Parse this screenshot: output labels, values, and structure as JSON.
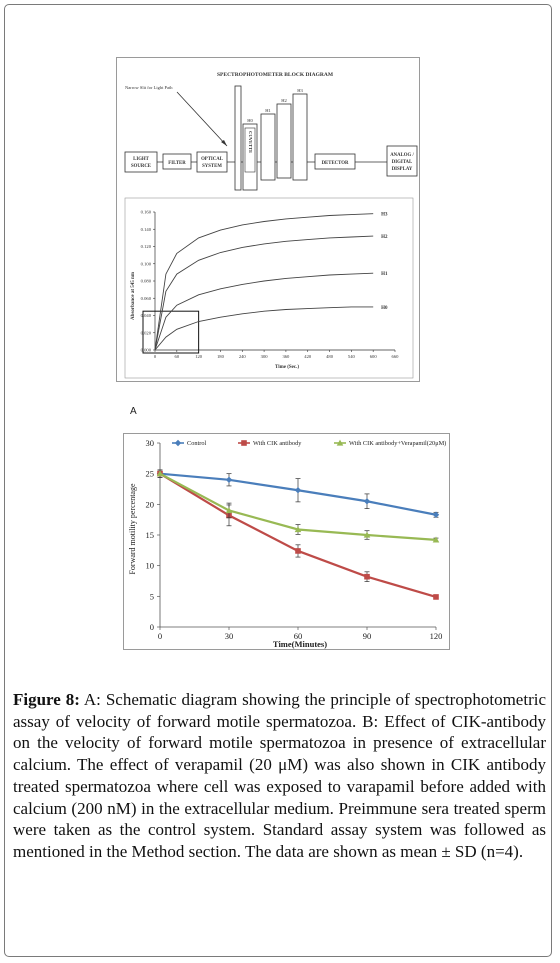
{
  "figure": {
    "label": "Figure 8:",
    "caption": "A: Schematic diagram showing the principle of spectrophotometric assay of velocity of forward motile spermatozoa. B: Effect of CIK-antibody on the velocity of forward motile spermatozoa in presence of extracellular calcium. The effect of verapamil (20 μM) was also shown in CIK antibody treated spermatozoa where cell was exposed to varapamil before added with calcium (200 nM) in the extracellular medium. Preimmune sera treated sperm were taken as the control system. Standard assay system was followed as mentioned in the Method section. The data are shown as mean ± SD (n=4)."
  },
  "panel_a": {
    "label": "A",
    "diagram": {
      "title": "SPECTROPHOTOMETER BLOCK DIAGRAM",
      "slit_label": "Narrow Slit for Light Path",
      "blocks": {
        "light_source": [
          "LIGHT",
          "SOURCE"
        ],
        "filter": "FILTER",
        "optical": [
          "OPTICAL",
          "SYSTEM"
        ],
        "cuvette": "CUVETTE",
        "detector": "DETECTOR",
        "display": [
          "ANALOG /",
          "DIGITAL",
          "DISPLAY"
        ]
      },
      "levels": [
        "H0",
        "H1",
        "H2",
        "H3"
      ]
    },
    "colors": {
      "ink": "#333333",
      "curve": "#444444"
    }
  },
  "chart_data": [
    {
      "type": "line",
      "xlabel": "Time (Sec.)",
      "ylabel": "Absorbance at 545 nm",
      "xticks": [
        0,
        60,
        120,
        180,
        240,
        300,
        360,
        420,
        480,
        540,
        600,
        660
      ],
      "yticks": [
        "0.000",
        "0.020",
        "0.040",
        "0.060",
        "0.080",
        "0.100",
        "0.120",
        "0.140",
        "0.160"
      ],
      "xlim": [
        0,
        660
      ],
      "ylim": [
        0,
        0.16
      ],
      "grid": false,
      "annotation": "box around 0–120 s, 0–0.045",
      "series": [
        {
          "name": "H3",
          "x": [
            0,
            30,
            60,
            120,
            180,
            240,
            300,
            360,
            420,
            480,
            540,
            600
          ],
          "y": [
            0.0,
            0.088,
            0.112,
            0.13,
            0.139,
            0.145,
            0.149,
            0.152,
            0.154,
            0.156,
            0.157,
            0.158
          ]
        },
        {
          "name": "H2",
          "x": [
            0,
            30,
            60,
            120,
            180,
            240,
            300,
            360,
            420,
            480,
            540,
            600
          ],
          "y": [
            0.0,
            0.068,
            0.088,
            0.104,
            0.113,
            0.119,
            0.123,
            0.126,
            0.128,
            0.13,
            0.131,
            0.132
          ]
        },
        {
          "name": "H1",
          "x": [
            0,
            30,
            60,
            120,
            180,
            240,
            300,
            360,
            420,
            480,
            540,
            600
          ],
          "y": [
            0.0,
            0.038,
            0.052,
            0.064,
            0.071,
            0.076,
            0.08,
            0.083,
            0.085,
            0.087,
            0.088,
            0.089
          ]
        },
        {
          "name": "H0",
          "x": [
            0,
            30,
            60,
            120,
            180,
            240,
            300,
            360,
            420,
            480,
            540,
            600
          ],
          "y": [
            0.0,
            0.015,
            0.024,
            0.033,
            0.038,
            0.042,
            0.045,
            0.047,
            0.048,
            0.049,
            0.05,
            0.05
          ]
        }
      ]
    },
    {
      "type": "line",
      "xlabel": "Time(Minutes)",
      "ylabel": "Forward motility percentage",
      "categories": [
        0,
        30,
        60,
        90,
        120
      ],
      "ylim": [
        0,
        30
      ],
      "yticks": [
        0,
        5,
        10,
        15,
        20,
        25,
        30
      ],
      "grid": false,
      "legend": "top",
      "series": [
        {
          "name": "Control",
          "values": [
            25,
            24,
            22.3,
            20.5,
            18.3
          ],
          "errors": [
            0.6,
            1.0,
            1.9,
            1.2,
            0.4
          ],
          "color": "#4a7ebb",
          "marker": "diamond"
        },
        {
          "name": "With CIK antibody",
          "values": [
            25,
            18.2,
            12.4,
            8.2,
            4.9
          ],
          "errors": [
            0.6,
            1.7,
            1.0,
            0.8,
            0.3
          ],
          "color": "#be4b48",
          "marker": "square"
        },
        {
          "name": "With CIK antibody+Verapamil(20μM)",
          "values": [
            25,
            19,
            15.9,
            15,
            14.2
          ],
          "errors": [
            0.6,
            1.2,
            0.8,
            0.7,
            0.3
          ],
          "color": "#98b954",
          "marker": "triangle"
        }
      ]
    }
  ]
}
